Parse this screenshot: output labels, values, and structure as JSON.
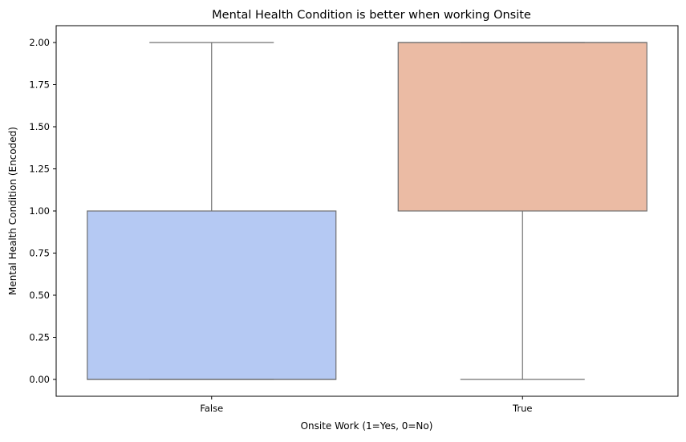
{
  "chart_data": {
    "type": "box",
    "title": "Mental Health Condition is better when working Onsite",
    "xlabel": "Onsite Work (1=Yes, 0=No)",
    "ylabel": "Mental Health Condition (Encoded)",
    "categories": [
      "False",
      "True"
    ],
    "ylim": [
      -0.1,
      2.1
    ],
    "yticks": [
      0.0,
      0.25,
      0.5,
      0.75,
      1.0,
      1.25,
      1.5,
      1.75,
      2.0
    ],
    "ytick_labels": [
      "0.00",
      "0.25",
      "0.50",
      "0.75",
      "1.00",
      "1.25",
      "1.50",
      "1.75",
      "2.00"
    ],
    "grid": false,
    "boxes": [
      {
        "category": "False",
        "whisker_low": 0.0,
        "q1": 0.0,
        "median": 0.0,
        "q3": 1.0,
        "whisker_high": 2.0,
        "color": "#b5c9f3"
      },
      {
        "category": "True",
        "whisker_low": 0.0,
        "q1": 1.0,
        "median": 2.0,
        "q3": 2.0,
        "whisker_high": 2.0,
        "color": "#ebbba4"
      }
    ],
    "edge_color": "#707070"
  }
}
